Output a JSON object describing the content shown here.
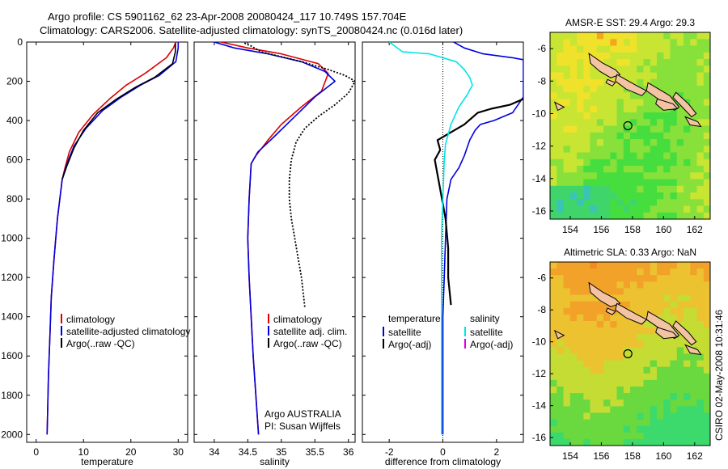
{
  "header": {
    "line1": "Argo profile: CS 5901162_62 23-Apr-2008 20080424_117 10.749S 157.704E",
    "line2": "Climatology: CARS2006. Satellite-adjusted climatology: synTS_20080424.nc (0.016d later)"
  },
  "footer": {
    "stamp": "CSIRO 02-May-2008 10:31:46"
  },
  "colors": {
    "climatology": "#dd0000",
    "satellite": "#0000dd",
    "argo": "#000000",
    "sal_satellite": "#00e5e5",
    "sal_argo": "#dd00dd",
    "zero_line": "#000000"
  },
  "chart_data": [
    {
      "type": "line",
      "id": "temperature",
      "xlabel": "temperature",
      "ylabel": "",
      "xlim": [
        -2,
        32
      ],
      "ylim": [
        2040,
        0
      ],
      "xticks": [
        0,
        10,
        20,
        30
      ],
      "yticks": [
        0,
        200,
        400,
        600,
        800,
        1000,
        1200,
        1400,
        1600,
        1800,
        2000
      ],
      "legend": [
        "climatology",
        "satellite-adjusted climatology",
        "Argo(..raw -QC)"
      ],
      "legend_position": "lower-left",
      "series": [
        {
          "name": "climatology",
          "color_key": "climatology",
          "x": [
            29.5,
            29.0,
            27.5,
            23.0,
            19.0,
            15.5,
            12.0,
            9.0,
            7.0,
            6.0,
            5.5,
            4.5,
            3.8,
            3.2,
            2.9,
            2.6,
            2.4,
            2.3
          ],
          "y": [
            0,
            30,
            80,
            160,
            220,
            290,
            370,
            460,
            560,
            650,
            700,
            900,
            1100,
            1300,
            1500,
            1700,
            1900,
            2000
          ]
        },
        {
          "name": "satellite-adjusted climatology",
          "color_key": "satellite",
          "x": [
            30.0,
            30.0,
            29.5,
            26.0,
            22.0,
            18.0,
            14.0,
            10.5,
            8.0,
            6.5,
            5.5,
            4.5,
            3.8,
            3.2,
            2.9,
            2.6,
            2.4,
            2.3
          ],
          "y": [
            0,
            30,
            100,
            170,
            220,
            280,
            350,
            440,
            530,
            620,
            700,
            900,
            1100,
            1300,
            1500,
            1700,
            1900,
            2000
          ]
        },
        {
          "name": "Argo(..raw -QC)",
          "color_key": "argo",
          "x": [
            29.4,
            29.4,
            28.8,
            25.0,
            21.0,
            17.0,
            13.0,
            10.0,
            8.0,
            6.5,
            5.5
          ],
          "y": [
            5,
            50,
            110,
            180,
            230,
            290,
            360,
            450,
            540,
            630,
            700
          ]
        }
      ]
    },
    {
      "type": "line",
      "id": "salinity",
      "xlabel": "salinity",
      "ylabel": "",
      "xlim": [
        33.7,
        36.1
      ],
      "ylim": [
        2040,
        0
      ],
      "xticks": [
        34,
        34.5,
        35,
        35.5,
        36
      ],
      "legend": [
        "climatology",
        "satellite adj. clim.",
        "Argo(..raw -QC)"
      ],
      "legend_position": "lower-right",
      "annotations": [
        "Argo AUSTRALIA",
        "PI: Susan Wijffels"
      ],
      "series": [
        {
          "name": "climatology",
          "color_key": "climatology",
          "x": [
            34.1,
            34.5,
            35.0,
            35.55,
            35.7,
            35.6,
            35.3,
            35.0,
            34.8,
            34.62,
            34.55,
            34.52,
            34.5,
            34.52,
            34.55,
            34.58,
            34.62,
            34.66
          ],
          "y": [
            0,
            30,
            60,
            110,
            160,
            250,
            330,
            420,
            500,
            580,
            620,
            800,
            1000,
            1200,
            1400,
            1600,
            1800,
            2000
          ]
        },
        {
          "name": "satellite adj. clim.",
          "color_key": "satellite",
          "x": [
            34.0,
            34.3,
            34.8,
            35.3,
            35.65,
            35.8,
            35.5,
            35.2,
            34.9,
            34.65,
            34.55,
            34.52,
            34.5,
            34.52,
            34.55,
            34.58,
            34.62,
            34.66
          ],
          "y": [
            0,
            30,
            60,
            100,
            150,
            200,
            280,
            380,
            480,
            560,
            620,
            800,
            1000,
            1200,
            1400,
            1600,
            1800,
            2000
          ]
        },
        {
          "name": "Argo(..raw -QC)",
          "color_key": "argo",
          "x": [
            34.45,
            34.55,
            34.7,
            35.3,
            35.7,
            35.95,
            36.1,
            36.0,
            35.8,
            35.55,
            35.35,
            35.22,
            35.15,
            35.12,
            35.12,
            35.15,
            35.2,
            35.25,
            35.3,
            35.35
          ],
          "y": [
            5,
            20,
            50,
            100,
            140,
            170,
            200,
            260,
            320,
            380,
            440,
            510,
            600,
            700,
            800,
            900,
            1000,
            1100,
            1200,
            1350
          ],
          "style": "dotted"
        }
      ]
    },
    {
      "type": "line",
      "id": "difference",
      "xlabel": "difference from climatology",
      "ylabel": "",
      "xlim": [
        -3,
        3
      ],
      "ylim": [
        2040,
        0
      ],
      "xticks": [
        -2,
        0,
        2
      ],
      "legend_groups": [
        {
          "title": "temperature",
          "items": [
            "satellite",
            "Argo(-adj)"
          ]
        },
        {
          "title": "salinity",
          "items": [
            "satellite",
            "Argo(-adj)"
          ]
        }
      ],
      "legend_position": "lower",
      "series": [
        {
          "name": "temperature satellite",
          "color_key": "satellite",
          "x": [
            0.4,
            0.8,
            1.5,
            2.6,
            3.0,
            3.0,
            2.6,
            1.9,
            1.4,
            1.2,
            1.0,
            0.8,
            0.6,
            0.3,
            0.15,
            0.1,
            0.05,
            0.0,
            0.0,
            0.0
          ],
          "y": [
            0,
            30,
            60,
            80,
            90,
            280,
            360,
            400,
            420,
            450,
            500,
            580,
            640,
            700,
            800,
            1000,
            1200,
            1400,
            1700,
            2000
          ]
        },
        {
          "name": "temperature Argo(-adj)",
          "color_key": "argo",
          "x": [
            3.0,
            2.5,
            1.8,
            1.3,
            0.8,
            0.3,
            -0.2,
            -0.1,
            -0.3,
            -0.1,
            0.1,
            0.2,
            0.2,
            0.3
          ],
          "y": [
            290,
            320,
            340,
            360,
            420,
            460,
            500,
            550,
            600,
            750,
            900,
            1050,
            1200,
            1340
          ]
        },
        {
          "name": "salinity satellite",
          "color_key": "sal_satellite",
          "x": [
            -2.0,
            -1.5,
            -0.5,
            0.5,
            0.8,
            1.0,
            1.1,
            0.9,
            0.6,
            0.3,
            0.1,
            0.05,
            0.0,
            -0.05,
            -0.05,
            -0.05,
            -0.05
          ],
          "y": [
            0,
            50,
            60,
            100,
            140,
            180,
            220,
            270,
            330,
            420,
            520,
            600,
            800,
            1000,
            1300,
            1700,
            2000
          ]
        },
        {
          "name": "salinity Argo(-adj)",
          "color_key": "sal_argo",
          "x": [],
          "y": []
        }
      ]
    },
    {
      "type": "heatmap",
      "id": "sst-map",
      "title": "AMSR-E SST: 29.4 Argo: 29.3",
      "xlim": [
        152.7,
        163.0
      ],
      "ylim": [
        -16.5,
        -5.0
      ],
      "xticks": [
        154,
        156,
        158,
        160,
        162
      ],
      "yticks": [
        -6,
        -8,
        -10,
        -12,
        -14,
        -16
      ],
      "marker": {
        "lon": 157.704,
        "lat": -10.749
      },
      "palette": [
        "#39c4b6",
        "#3fd56a",
        "#46de3f",
        "#88e03a",
        "#c7e532",
        "#f0e22a",
        "#f5a61c"
      ]
    },
    {
      "type": "heatmap",
      "id": "sla-map",
      "title": "Altimetric SLA: 0.33 Argo: NaN",
      "xlim": [
        152.7,
        163.0
      ],
      "ylim": [
        -16.5,
        -5.0
      ],
      "xticks": [
        154,
        156,
        158,
        160,
        162
      ],
      "yticks": [
        -6,
        -8,
        -10,
        -12,
        -14,
        -16
      ],
      "marker": {
        "lon": 157.704,
        "lat": -10.749
      },
      "palette": [
        "#38cfae",
        "#3cd96d",
        "#6ad83f",
        "#c4dc33",
        "#ecc230",
        "#f2a228",
        "#f08a22"
      ]
    }
  ]
}
